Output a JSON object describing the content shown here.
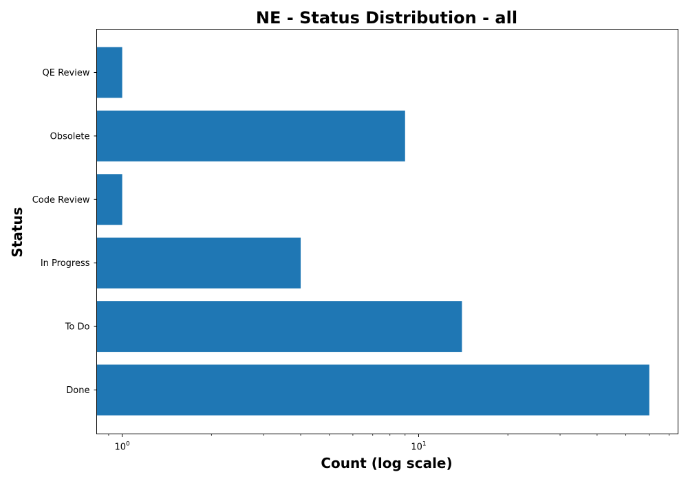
{
  "chart_data": {
    "type": "bar",
    "orientation": "horizontal",
    "title": "NE - Status Distribution - all",
    "xlabel": "Count (log scale)",
    "ylabel": "Status",
    "x_scale": "log",
    "xlim": [
      0.82,
      75
    ],
    "x_ticks": [
      {
        "base": "10",
        "exp": "0",
        "value": 1
      },
      {
        "base": "10",
        "exp": "1",
        "value": 10
      }
    ],
    "categories": [
      "Done",
      "To Do",
      "In Progress",
      "Code Review",
      "Obsolete",
      "QE Review"
    ],
    "values": [
      60,
      14,
      4,
      1,
      9,
      1
    ],
    "bar_color": "#1f77b4",
    "grid": false
  }
}
